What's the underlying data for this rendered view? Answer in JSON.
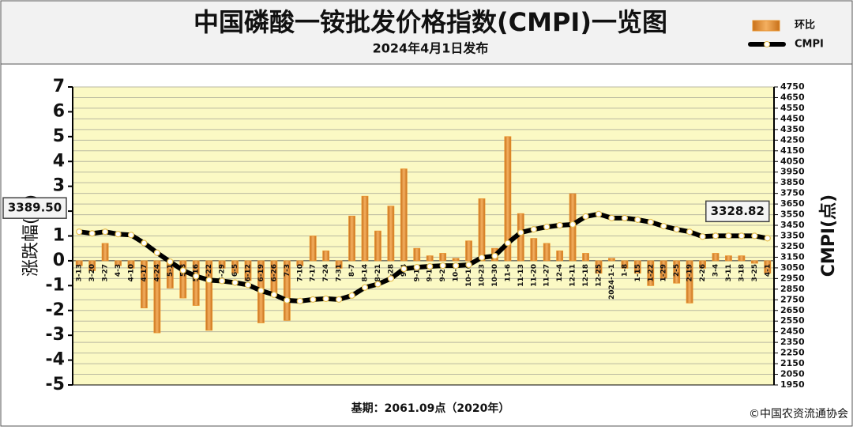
{
  "chart_data": {
    "type": "bar_line",
    "title": "中国磷酸一铵批发价格指数(CMPI)一览图",
    "subtitle": "2024年4月1日发布",
    "y_label": "涨跌幅(%)",
    "y2_label": "CMPI(点)",
    "footnote": "基期：2061.09点（2020年）",
    "source": "©中国农资流通协会",
    "legend": "upper right",
    "grid": true,
    "categories": [
      "3-13",
      "3-20",
      "3-27",
      "4-3",
      "4-10",
      "4-17",
      "4-24",
      "5-1",
      "5-8",
      "5-16",
      "5-22",
      "5-29",
      "6-5",
      "6-12",
      "6-19",
      "6-26",
      "7-3",
      "7-10",
      "7-17",
      "7-24",
      "7-31",
      "8-7",
      "8-14",
      "8-21",
      "8-28",
      "9-4",
      "9-11",
      "9-18",
      "9-25",
      "10-9",
      "10-16",
      "10-23",
      "10-30",
      "11-6",
      "11-13",
      "11-20",
      "11-27",
      "12-4",
      "12-11",
      "12-18",
      "12-25",
      "2024-1-1",
      "1-8",
      "1-15",
      "1-22",
      "1-29",
      "2-5",
      "2-19",
      "2-26",
      "3-4",
      "3-11",
      "3-18",
      "3-25",
      "4-1"
    ],
    "series": [
      {
        "name": "环比",
        "type": "bar",
        "color": "#e8922c",
        "values": [
          -0.2,
          -0.4,
          0.7,
          -0.2,
          -0.3,
          -1.9,
          -2.9,
          -1.1,
          -1.5,
          -1.8,
          -2.8,
          -0.3,
          -0.5,
          -0.8,
          -2.5,
          -1.3,
          -2.4,
          -0.2,
          1.0,
          0.4,
          -0.3,
          1.8,
          2.6,
          1.2,
          2.2,
          3.7,
          0.5,
          0.2,
          0.3,
          0.1,
          0.8,
          2.5,
          0.5,
          5.0,
          1.9,
          0.9,
          0.7,
          0.4,
          2.7,
          0.3,
          -0.5,
          0.1,
          -0.3,
          -0.5,
          -1.0,
          -0.7,
          -0.9,
          -1.7,
          -0.3,
          0.3,
          0.2,
          0.2,
          -0.1,
          -0.5
        ]
      },
      {
        "name": "CMPI",
        "type": "line",
        "axis": "y2",
        "color": "#000000",
        "values": [
          3389.5,
          3374,
          3389,
          3367,
          3359,
          3283,
          3192,
          3108,
          3026,
          2972,
          2935,
          2927,
          2912,
          2890,
          2836,
          2798,
          2745,
          2738,
          2753,
          2760,
          2753,
          2790,
          2866,
          2897,
          2950,
          3041,
          3056,
          3064,
          3071,
          3071,
          3079,
          3147,
          3162,
          3283,
          3382,
          3412,
          3435,
          3450,
          3458,
          3533,
          3556,
          3518,
          3518,
          3503,
          3480,
          3442,
          3412,
          3389,
          3344,
          3351,
          3351,
          3351,
          3351,
          3328.82
        ],
        "value_labels": [
          "3389.50",
          null,
          null,
          null,
          null,
          null,
          null,
          null,
          null,
          null,
          null,
          null,
          null,
          null,
          null,
          null,
          null,
          null,
          null,
          null,
          null,
          null,
          null,
          null,
          null,
          null,
          null,
          null,
          null,
          null,
          null,
          null,
          null,
          null,
          null,
          null,
          null,
          null,
          null,
          null,
          null,
          null,
          null,
          null,
          null,
          null,
          null,
          null,
          null,
          null,
          null,
          null,
          null,
          "3328.82"
        ]
      }
    ],
    "ylim": [
      -5,
      7
    ],
    "yticks": [
      -5,
      -4,
      -3,
      -2,
      -1,
      0,
      1,
      2,
      3,
      4,
      5,
      6,
      7
    ],
    "y2lim": [
      1950,
      4750
    ],
    "y2ticks": [
      1950,
      2050,
      2150,
      2250,
      2350,
      2450,
      2550,
      2650,
      2750,
      2850,
      2950,
      3050,
      3150,
      3250,
      3350,
      3450,
      3550,
      3650,
      3750,
      3850,
      3950,
      4050,
      4150,
      4250,
      4350,
      4450,
      4550,
      4650,
      4750
    ]
  }
}
